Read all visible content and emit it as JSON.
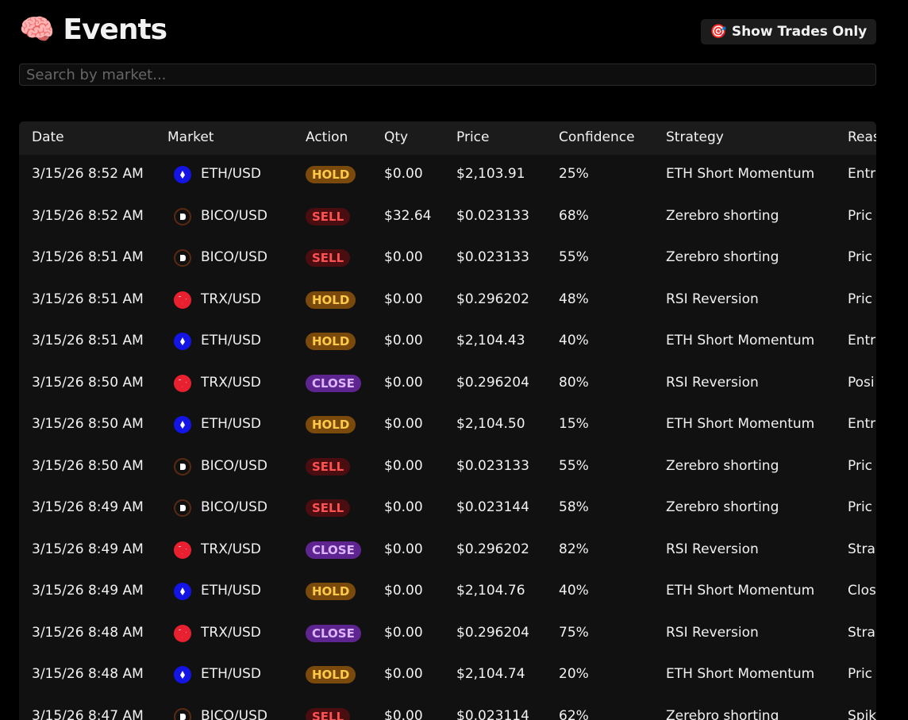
{
  "header": {
    "title": "🧠 Events",
    "button": "🎯 Show Trades Only",
    "search_placeholder": "Search by market..."
  },
  "table": {
    "columns": [
      "Date",
      "Market",
      "Action",
      "Qty",
      "Price",
      "Confidence",
      "Strategy",
      "Reas"
    ],
    "rows": [
      [
        "3/15/26 8:52 AM",
        "ETH/USD",
        "HOLD",
        "$0.00",
        "$2,103.91",
        "25%",
        "ETH Short Momentum",
        "Entr"
      ],
      [
        "3/15/26 8:52 AM",
        "BICO/USD",
        "SELL",
        "$32.64",
        "$0.023133",
        "68%",
        "Zerebro shorting",
        "Pric"
      ],
      [
        "3/15/26 8:51 AM",
        "BICO/USD",
        "SELL",
        "$0.00",
        "$0.023133",
        "55%",
        "Zerebro shorting",
        "Pric"
      ],
      [
        "3/15/26 8:51 AM",
        "TRX/USD",
        "HOLD",
        "$0.00",
        "$0.296202",
        "48%",
        "RSI Reversion",
        "Pric"
      ],
      [
        "3/15/26 8:51 AM",
        "ETH/USD",
        "HOLD",
        "$0.00",
        "$2,104.43",
        "40%",
        "ETH Short Momentum",
        "Entr"
      ],
      [
        "3/15/26 8:50 AM",
        "TRX/USD",
        "CLOSE",
        "$0.00",
        "$0.296204",
        "80%",
        "RSI Reversion",
        "Posi"
      ],
      [
        "3/15/26 8:50 AM",
        "ETH/USD",
        "HOLD",
        "$0.00",
        "$2,104.50",
        "15%",
        "ETH Short Momentum",
        "Entr"
      ],
      [
        "3/15/26 8:50 AM",
        "BICO/USD",
        "SELL",
        "$0.00",
        "$0.023133",
        "55%",
        "Zerebro shorting",
        "Pric"
      ],
      [
        "3/15/26 8:49 AM",
        "BICO/USD",
        "SELL",
        "$0.00",
        "$0.023144",
        "58%",
        "Zerebro shorting",
        "Pric"
      ],
      [
        "3/15/26 8:49 AM",
        "TRX/USD",
        "CLOSE",
        "$0.00",
        "$0.296202",
        "82%",
        "RSI Reversion",
        "Stra"
      ],
      [
        "3/15/26 8:49 AM",
        "ETH/USD",
        "HOLD",
        "$0.00",
        "$2,104.76",
        "40%",
        "ETH Short Momentum",
        "Clos"
      ],
      [
        "3/15/26 8:48 AM",
        "TRX/USD",
        "CLOSE",
        "$0.00",
        "$0.296204",
        "75%",
        "RSI Reversion",
        "Stra"
      ],
      [
        "3/15/26 8:48 AM",
        "ETH/USD",
        "HOLD",
        "$0.00",
        "$2,104.74",
        "20%",
        "ETH Short Momentum",
        "Pric"
      ],
      [
        "3/15/26 8:47 AM",
        "BICO/USD",
        "SELL",
        "$0.00",
        "$0.023114",
        "62%",
        "Zerebro shorting",
        "Spik"
      ]
    ]
  }
}
